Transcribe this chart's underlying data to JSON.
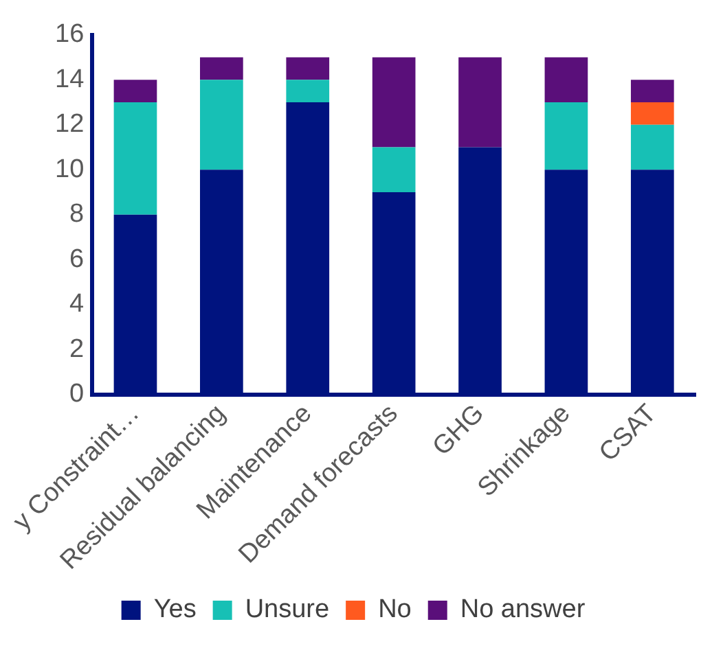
{
  "chart_data": {
    "type": "bar",
    "stacked": true,
    "categories": [
      "y Constraint…",
      "Residual balancing",
      "Maintenance",
      "Demand forecasts",
      "GHG",
      "Shrinkage",
      "CSAT"
    ],
    "series": [
      {
        "name": "Yes",
        "color": "#00137f",
        "values": [
          8,
          10,
          13,
          9,
          11,
          10,
          10
        ]
      },
      {
        "name": "Unsure",
        "color": "#17c0b5",
        "values": [
          5,
          4,
          1,
          2,
          0,
          3,
          2
        ]
      },
      {
        "name": "No",
        "color": "#ff5a1f",
        "values": [
          0,
          0,
          0,
          0,
          0,
          0,
          1
        ]
      },
      {
        "name": "No answer",
        "color": "#5a0f7a",
        "values": [
          1,
          1,
          1,
          4,
          4,
          2,
          1
        ]
      }
    ],
    "ylim": [
      0,
      16
    ],
    "yticks": [
      0,
      2,
      4,
      6,
      8,
      10,
      12,
      14,
      16
    ],
    "grid": false,
    "legend": "bottom"
  }
}
